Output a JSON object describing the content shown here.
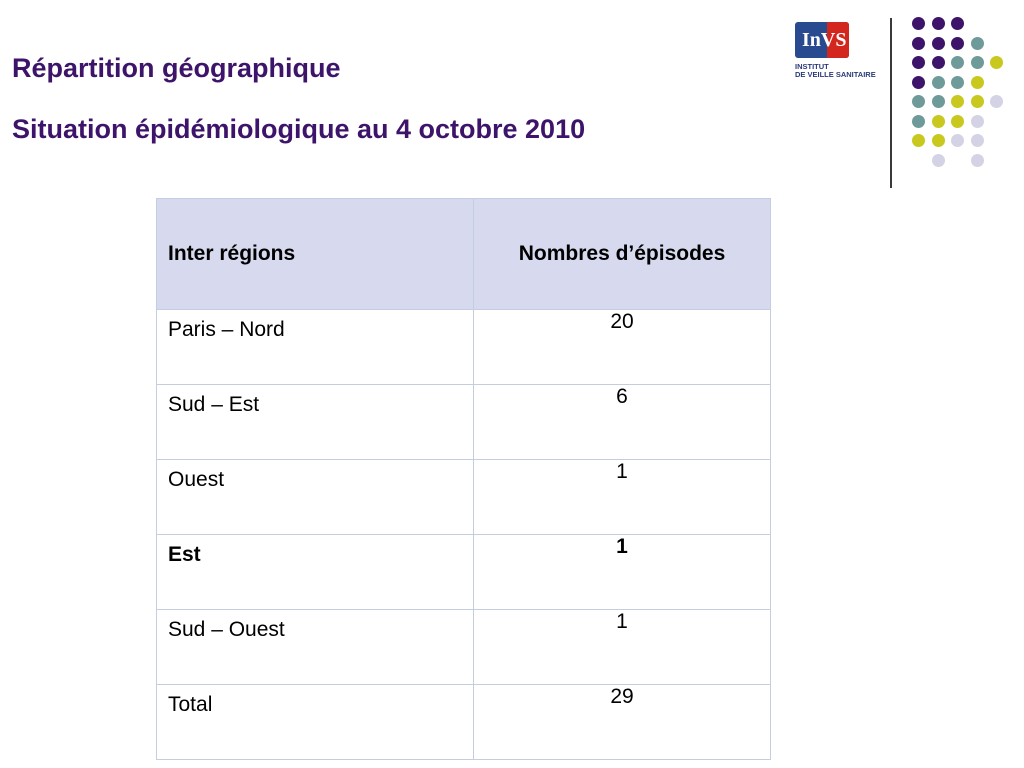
{
  "header": {
    "title": "Répartition géographique",
    "subtitle": "Situation épidémiologique au 4 octobre 2010"
  },
  "logo": {
    "mark": "InVS",
    "line1": "INSTITUT",
    "line2": "DE VEILLE SANITAIRE"
  },
  "table": {
    "headers": [
      "Inter régions",
      "Nombres d’épisodes"
    ],
    "rows": [
      {
        "region": "Paris – Nord",
        "count": "20",
        "bold": false
      },
      {
        "region": "Sud – Est",
        "count": "6",
        "bold": false
      },
      {
        "region": "Ouest",
        "count": "1",
        "bold": false
      },
      {
        "region": "Est",
        "count": "1",
        "bold": true
      },
      {
        "region": "Sud – Ouest",
        "count": "1",
        "bold": false
      },
      {
        "region": "Total",
        "count": "29",
        "bold": false
      }
    ]
  },
  "colors": {
    "title": "#3d1469",
    "header_bg": "#d7d9ee",
    "purple": "#3d1469",
    "teal": "#6f9a9a",
    "yellow": "#c8c81e",
    "lavender": "#d4d3e6"
  },
  "decoration": {
    "dot_grid": [
      [
        "purple",
        "purple",
        "purple",
        null,
        null
      ],
      [
        "purple",
        "purple",
        "purple",
        "teal",
        null
      ],
      [
        "purple",
        "purple",
        "teal",
        "teal",
        "yellow"
      ],
      [
        "purple",
        "teal",
        "teal",
        "yellow",
        null
      ],
      [
        "teal",
        "teal",
        "yellow",
        "yellow",
        "lavender"
      ],
      [
        "teal",
        "yellow",
        "yellow",
        "lavender",
        null
      ],
      [
        "yellow",
        "yellow",
        "lavender",
        "lavender",
        null
      ],
      [
        null,
        "lavender",
        null,
        "lavender",
        null
      ]
    ]
  }
}
